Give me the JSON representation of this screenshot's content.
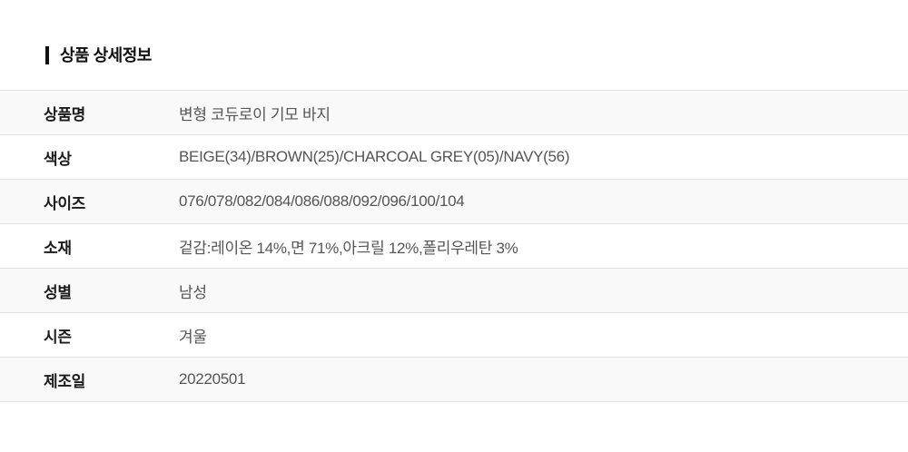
{
  "section": {
    "title": "상품 상세정보"
  },
  "table": {
    "rows": [
      {
        "label": "상품명",
        "value": "변형 코듀로이 기모 바지"
      },
      {
        "label": "색상",
        "value": "BEIGE(34)/BROWN(25)/CHARCOAL GREY(05)/NAVY(56)"
      },
      {
        "label": "사이즈",
        "value": "076/078/082/084/086/088/092/096/100/104"
      },
      {
        "label": "소재",
        "value": "겉감:레이온 14%,면 71%,아크릴 12%,폴리우레탄 3%"
      },
      {
        "label": "성별",
        "value": "남성"
      },
      {
        "label": "시즌",
        "value": "겨울"
      },
      {
        "label": "제조일",
        "value": "20220501"
      }
    ]
  },
  "colors": {
    "accent_bar": "#111111",
    "title_text": "#111111",
    "label_text": "#1b1b1b",
    "value_text": "#555555",
    "row_border": "#e2e2e2",
    "row_alt_background": "#f9f9f9",
    "page_background": "#ffffff"
  }
}
